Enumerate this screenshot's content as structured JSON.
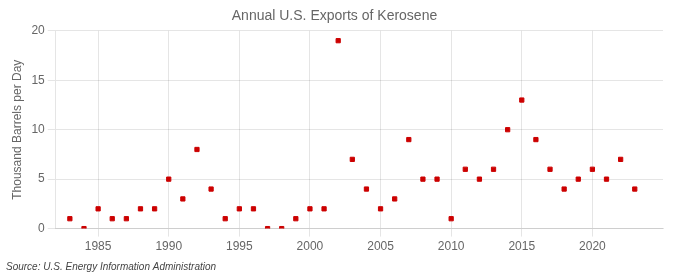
{
  "chart_data": {
    "type": "scatter",
    "title": "Annual U.S. Exports of Kerosene",
    "ylabel": "Thousand Barrels per Day",
    "annotation": "Source: U.S. Energy Information Administration",
    "x": [
      1983,
      1984,
      1985,
      1986,
      1987,
      1988,
      1989,
      1990,
      1991,
      1992,
      1993,
      1994,
      1995,
      1996,
      1997,
      1998,
      1999,
      2000,
      2001,
      2002,
      2003,
      2004,
      2005,
      2006,
      2007,
      2008,
      2009,
      2010,
      2011,
      2012,
      2013,
      2014,
      2015,
      2016,
      2017,
      2018,
      2019,
      2020,
      2021,
      2022,
      2023
    ],
    "values": [
      1,
      0,
      2,
      1,
      1,
      2,
      2,
      5,
      3,
      8,
      4,
      1,
      2,
      2,
      0,
      0,
      1,
      2,
      2,
      19,
      7,
      4,
      2,
      3,
      9,
      5,
      5,
      1,
      6,
      5,
      6,
      10,
      13,
      9,
      6,
      4,
      5,
      6,
      5,
      7,
      4
    ],
    "color": "#cc0000",
    "marker": "square",
    "xlim": [
      1982,
      2025
    ],
    "xticks": [
      1985,
      1990,
      1995,
      2000,
      2005,
      2010,
      2015,
      2020
    ],
    "ylim": [
      0,
      20
    ],
    "yticks": [
      0,
      5,
      10,
      15,
      20
    ],
    "grid": true
  }
}
